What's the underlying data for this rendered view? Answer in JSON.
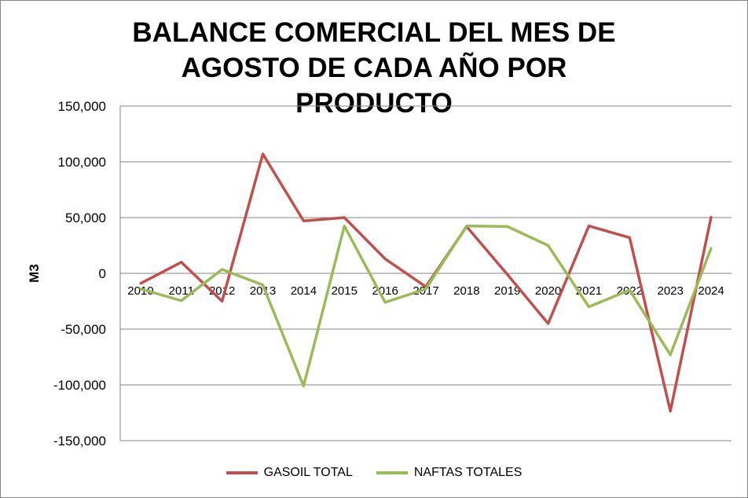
{
  "chart_data": {
    "type": "line",
    "title": "BALANCE COMERCIAL DEL MES DE AGOSTO DE CADA AÑO POR PRODUCTO",
    "xlabel": "",
    "ylabel": "M3",
    "ylim": [
      -150000,
      150000
    ],
    "yticks": [
      "150,000",
      "100,000",
      "50,000",
      "0",
      "-50,000",
      "-100,000",
      "-150,000"
    ],
    "ytick_values": [
      150000,
      100000,
      50000,
      0,
      -50000,
      -100000,
      -150000
    ],
    "grid": true,
    "legend_position": "bottom",
    "x": [
      "2010",
      "2011",
      "2012",
      "2013",
      "2014",
      "2015",
      "2016",
      "2017",
      "2018",
      "2019",
      "2020",
      "2021",
      "2022",
      "2023",
      "2024"
    ],
    "series": [
      {
        "name": "GASOIL TOTAL",
        "color": "#c0504d",
        "values": [
          -9000,
          10000,
          -25000,
          107000,
          47000,
          50000,
          13000,
          -12000,
          42000,
          -1000,
          -45000,
          42500,
          32000,
          -123500,
          50500
        ]
      },
      {
        "name": "NAFTAS TOTALES",
        "color": "#9bbb59",
        "values": [
          -14000,
          -24500,
          3500,
          -10500,
          -101000,
          42500,
          -26000,
          -14000,
          42500,
          42000,
          25000,
          -30000,
          -15000,
          -73000,
          22500
        ]
      }
    ]
  }
}
